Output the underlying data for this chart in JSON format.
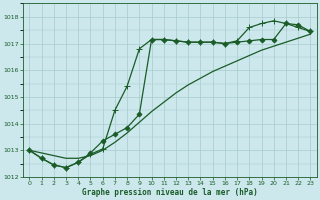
{
  "title": "Graphe pression niveau de la mer (hPa)",
  "bg_color": "#cce8ec",
  "grid_color": "#a8cccc",
  "line_color": "#1a5c28",
  "xlim": [
    -0.5,
    23.5
  ],
  "ylim": [
    1012,
    1018.5
  ],
  "yticks": [
    1012,
    1013,
    1014,
    1015,
    1016,
    1017,
    1018
  ],
  "xticks": [
    0,
    1,
    2,
    3,
    4,
    5,
    6,
    7,
    8,
    9,
    10,
    11,
    12,
    13,
    14,
    15,
    16,
    17,
    18,
    19,
    20,
    21,
    22,
    23
  ],
  "series": [
    {
      "x": [
        0,
        1,
        2,
        3,
        4,
        5,
        6,
        7,
        8,
        9,
        10,
        11,
        12,
        13,
        14,
        15,
        16,
        17,
        18,
        19,
        20,
        21,
        22,
        23
      ],
      "y": [
        1013.0,
        1012.7,
        1012.45,
        1012.35,
        1012.55,
        1012.9,
        1013.35,
        1013.6,
        1013.85,
        1014.35,
        1017.15,
        1017.15,
        1017.1,
        1017.05,
        1017.05,
        1017.05,
        1017.0,
        1017.05,
        1017.1,
        1017.15,
        1017.15,
        1017.75,
        1017.7,
        1017.45
      ],
      "marker": "D",
      "markersize": 2.5,
      "linewidth": 0.9
    },
    {
      "x": [
        0,
        1,
        2,
        3,
        4,
        5,
        6,
        7,
        8,
        9,
        10,
        11,
        12,
        13,
        14,
        15,
        16,
        17,
        18,
        19,
        20,
        21,
        22,
        23
      ],
      "y": [
        1013.0,
        1012.7,
        1012.45,
        1012.35,
        1012.55,
        1012.85,
        1013.05,
        1014.5,
        1015.4,
        1016.8,
        1017.15,
        1017.15,
        1017.1,
        1017.05,
        1017.05,
        1017.05,
        1017.0,
        1017.1,
        1017.6,
        1017.75,
        1017.85,
        1017.75,
        1017.6,
        1017.45
      ],
      "marker": "+",
      "markersize": 4,
      "linewidth": 0.9
    },
    {
      "x": [
        0,
        1,
        2,
        3,
        4,
        5,
        6,
        7,
        8,
        9,
        10,
        11,
        12,
        13,
        14,
        15,
        16,
        17,
        18,
        19,
        20,
        21,
        22,
        23
      ],
      "y": [
        1013.0,
        1012.9,
        1012.8,
        1012.7,
        1012.7,
        1012.8,
        1013.0,
        1013.3,
        1013.65,
        1014.05,
        1014.45,
        1014.8,
        1015.15,
        1015.45,
        1015.7,
        1015.95,
        1016.15,
        1016.35,
        1016.55,
        1016.75,
        1016.9,
        1017.05,
        1017.2,
        1017.35
      ],
      "marker": null,
      "markersize": 0,
      "linewidth": 0.9
    }
  ]
}
